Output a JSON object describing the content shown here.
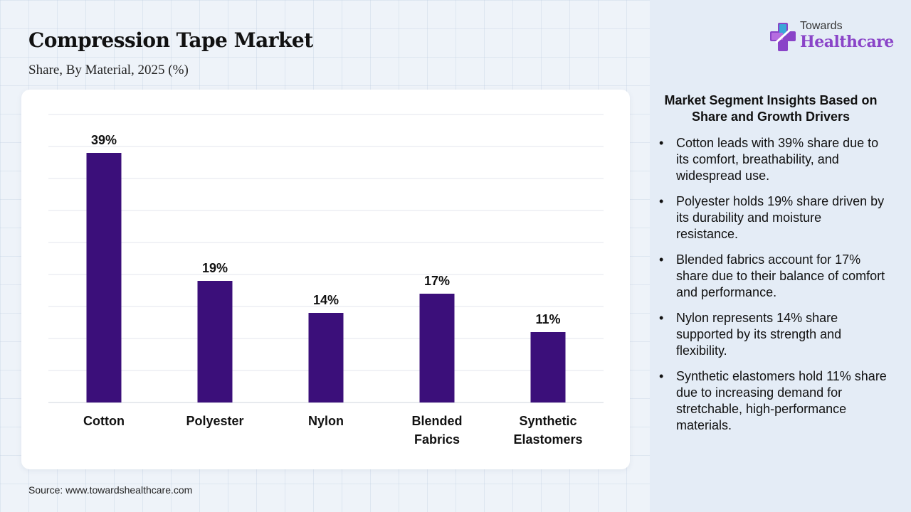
{
  "header": {
    "title": "Compression Tape Market",
    "subtitle": "Share, By Material, 2025 (%)"
  },
  "logo": {
    "top": "Towards",
    "main": "Healthcare"
  },
  "chart_data": {
    "type": "bar",
    "categories": [
      [
        "Cotton"
      ],
      [
        "Polyester"
      ],
      [
        "Nylon"
      ],
      [
        "Blended",
        "Fabrics"
      ],
      [
        "Synthetic",
        "Elastomers"
      ]
    ],
    "values": [
      39,
      19,
      14,
      17,
      11
    ],
    "data_labels": [
      "39%",
      "19%",
      "14%",
      "17%",
      "11%"
    ],
    "ylim": [
      0,
      45
    ],
    "grid": true,
    "bar_color": "#3b0f7a",
    "title": "",
    "xlabel": "",
    "ylabel": ""
  },
  "insights": {
    "heading": "Market Segment Insights Based on Share and Growth Drivers",
    "items": [
      "Cotton leads with 39% share due to its comfort, breathability, and widespread use.",
      "Polyester holds 19% share driven by its durability and moisture resistance.",
      "Blended fabrics account for 17% share due to their balance of comfort and performance.",
      "Nylon represents 14% share supported by its strength and flexibility.",
      "Synthetic elastomers hold 11% share due to increasing demand for stretchable, high-performance materials."
    ]
  },
  "footer": {
    "source": "Source: www.towardshealthcare.com"
  }
}
